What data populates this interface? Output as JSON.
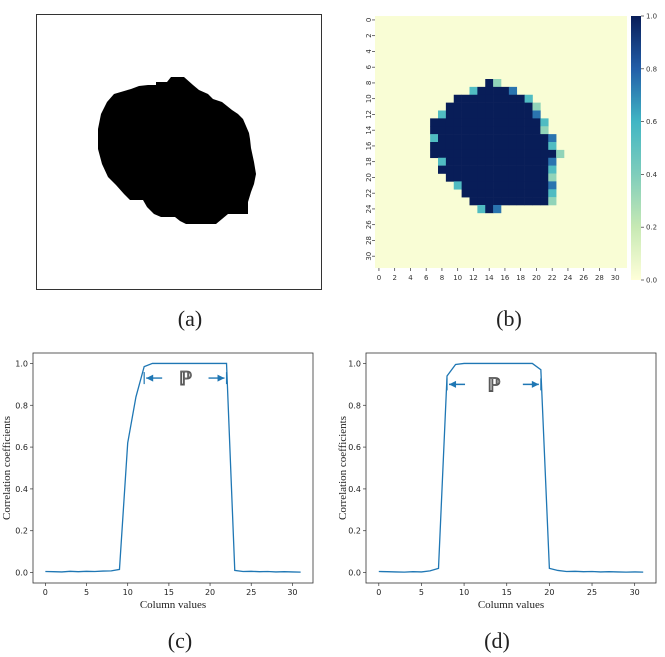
{
  "captions": {
    "a": "(a)",
    "b": "(b)",
    "c": "(c)",
    "d": "(d)"
  },
  "colors": {
    "line": "#1f77b4",
    "blob": "#000000",
    "heat_low": "#ffffd9",
    "heat_high": "#081d58"
  },
  "chart_data": [
    {
      "type": "image",
      "panel": "a",
      "title": "",
      "description_visible": "binary mask"
    },
    {
      "type": "heatmap",
      "panel": "b",
      "x_ticks": [
        "0",
        "2",
        "4",
        "6",
        "8",
        "10",
        "12",
        "14",
        "16",
        "18",
        "20",
        "22",
        "24",
        "26",
        "28",
        "30"
      ],
      "y_ticks": [
        "0",
        "2",
        "4",
        "6",
        "8",
        "10",
        "12",
        "14",
        "16",
        "18",
        "20",
        "22",
        "24",
        "26",
        "28",
        "30"
      ],
      "colorbar_ticks": [
        "0.0",
        "0.2",
        "0.4",
        "0.6",
        "0.8",
        "1.0"
      ],
      "vmin": 0,
      "vmax": 1,
      "size": [
        32,
        32
      ],
      "rows": [
        {
          "row": 8,
          "start": 14,
          "end": 15
        },
        {
          "row": 9,
          "start": 12,
          "end": 17
        },
        {
          "row": 10,
          "start": 10,
          "end": 19
        },
        {
          "row": 11,
          "start": 9,
          "end": 20
        },
        {
          "row": 12,
          "start": 8,
          "end": 20
        },
        {
          "row": 13,
          "start": 7,
          "end": 21
        },
        {
          "row": 14,
          "start": 7,
          "end": 21
        },
        {
          "row": 15,
          "start": 7,
          "end": 22
        },
        {
          "row": 16,
          "start": 7,
          "end": 22
        },
        {
          "row": 17,
          "start": 7,
          "end": 23
        },
        {
          "row": 18,
          "start": 8,
          "end": 22
        },
        {
          "row": 19,
          "start": 8,
          "end": 22
        },
        {
          "row": 20,
          "start": 9,
          "end": 22
        },
        {
          "row": 21,
          "start": 10,
          "end": 22
        },
        {
          "row": 22,
          "start": 11,
          "end": 22
        },
        {
          "row": 23,
          "start": 12,
          "end": 22
        },
        {
          "row": 24,
          "start": 13,
          "end": 15
        }
      ],
      "edge_values": [
        0.75,
        0.55,
        0.35
      ]
    },
    {
      "type": "line",
      "panel": "c",
      "xlabel": "Column values",
      "ylabel": "Correlation coefficients",
      "xlim": [
        0,
        31
      ],
      "ylim": [
        0.0,
        1.0
      ],
      "x_ticks": [
        "0",
        "5",
        "10",
        "15",
        "20",
        "25",
        "30"
      ],
      "y_ticks": [
        "0.0",
        "0.2",
        "0.4",
        "0.6",
        "0.8",
        "1.0"
      ],
      "annotation": "ℙ",
      "arrow_span": [
        12,
        22
      ],
      "arrow_y": 0.93,
      "x": [
        0,
        1,
        2,
        3,
        4,
        5,
        6,
        7,
        8,
        9,
        10,
        11,
        12,
        13,
        14,
        15,
        16,
        17,
        18,
        19,
        20,
        21,
        22,
        23,
        24,
        25,
        26,
        27,
        28,
        29,
        30,
        31
      ],
      "y": [
        0.005,
        0.004,
        0.003,
        0.006,
        0.004,
        0.006,
        0.005,
        0.007,
        0.008,
        0.015,
        0.62,
        0.84,
        0.985,
        1.0,
        1.0,
        1.0,
        1.0,
        1.0,
        1.0,
        1.0,
        1.0,
        1.0,
        1.0,
        0.01,
        0.005,
        0.006,
        0.004,
        0.005,
        0.003,
        0.004,
        0.003,
        0.002
      ]
    },
    {
      "type": "line",
      "panel": "d",
      "xlabel": "Column values",
      "ylabel": "Correlation coefficients",
      "xlim": [
        0,
        31
      ],
      "ylim": [
        0.0,
        1.0
      ],
      "x_ticks": [
        "0",
        "5",
        "10",
        "15",
        "20",
        "25",
        "30"
      ],
      "y_ticks": [
        "0.0",
        "0.2",
        "0.4",
        "0.6",
        "0.8",
        "1.0"
      ],
      "annotation": "ℙ",
      "arrow_span": [
        8,
        19
      ],
      "arrow_y": 0.9,
      "x": [
        0,
        1,
        2,
        3,
        4,
        5,
        6,
        7,
        8,
        9,
        10,
        11,
        12,
        13,
        14,
        15,
        16,
        17,
        18,
        19,
        20,
        21,
        22,
        23,
        24,
        25,
        26,
        27,
        28,
        29,
        30,
        31
      ],
      "y": [
        0.005,
        0.004,
        0.003,
        0.002,
        0.004,
        0.003,
        0.008,
        0.02,
        0.94,
        0.995,
        1.0,
        1.0,
        1.0,
        1.0,
        1.0,
        1.0,
        1.0,
        1.0,
        1.0,
        0.97,
        0.02,
        0.01,
        0.005,
        0.006,
        0.004,
        0.005,
        0.003,
        0.004,
        0.003,
        0.002,
        0.003,
        0.002
      ]
    }
  ]
}
